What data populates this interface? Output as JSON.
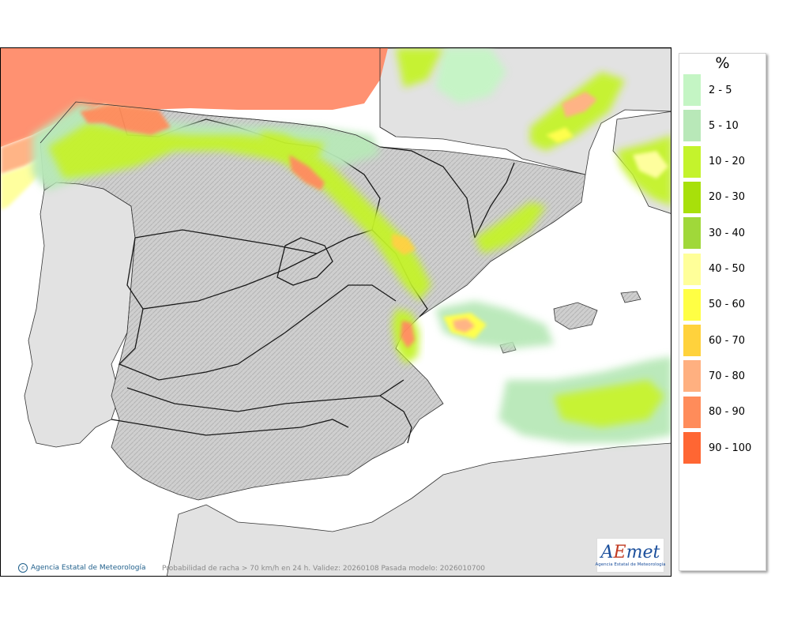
{
  "legend": {
    "unit": "%",
    "classes": [
      {
        "label": "2 - 5",
        "color": "#c4f5c4"
      },
      {
        "label": "5 - 10",
        "color": "#b8e8b8"
      },
      {
        "label": "10 - 20",
        "color": "#c4f32c"
      },
      {
        "label": "20 - 30",
        "color": "#a8e00a"
      },
      {
        "label": "30 - 40",
        "color": "#a0d83a"
      },
      {
        "label": "40 - 50",
        "color": "#ffff99"
      },
      {
        "label": "50 - 60",
        "color": "#ffff44"
      },
      {
        "label": "60 - 70",
        "color": "#ffd23c"
      },
      {
        "label": "70 - 80",
        "color": "#ffb080"
      },
      {
        "label": "80 - 90",
        "color": "#ff8c5a"
      },
      {
        "label": "90 - 100",
        "color": "#ff6633"
      }
    ]
  },
  "map": {
    "credit": "Agencia Estatal de Meteorología",
    "caption": "Probabilidad de racha > 70 km/h en 24 h. Validez: 20260108 Pasada modelo: 2026010700",
    "logo_text": "AEmet",
    "logo_sub": "Agencia Estatal de Meteorología",
    "sea_color": "#ffffff",
    "land_color": "#e2e2e2",
    "relief_color": "#bdbdbd"
  }
}
